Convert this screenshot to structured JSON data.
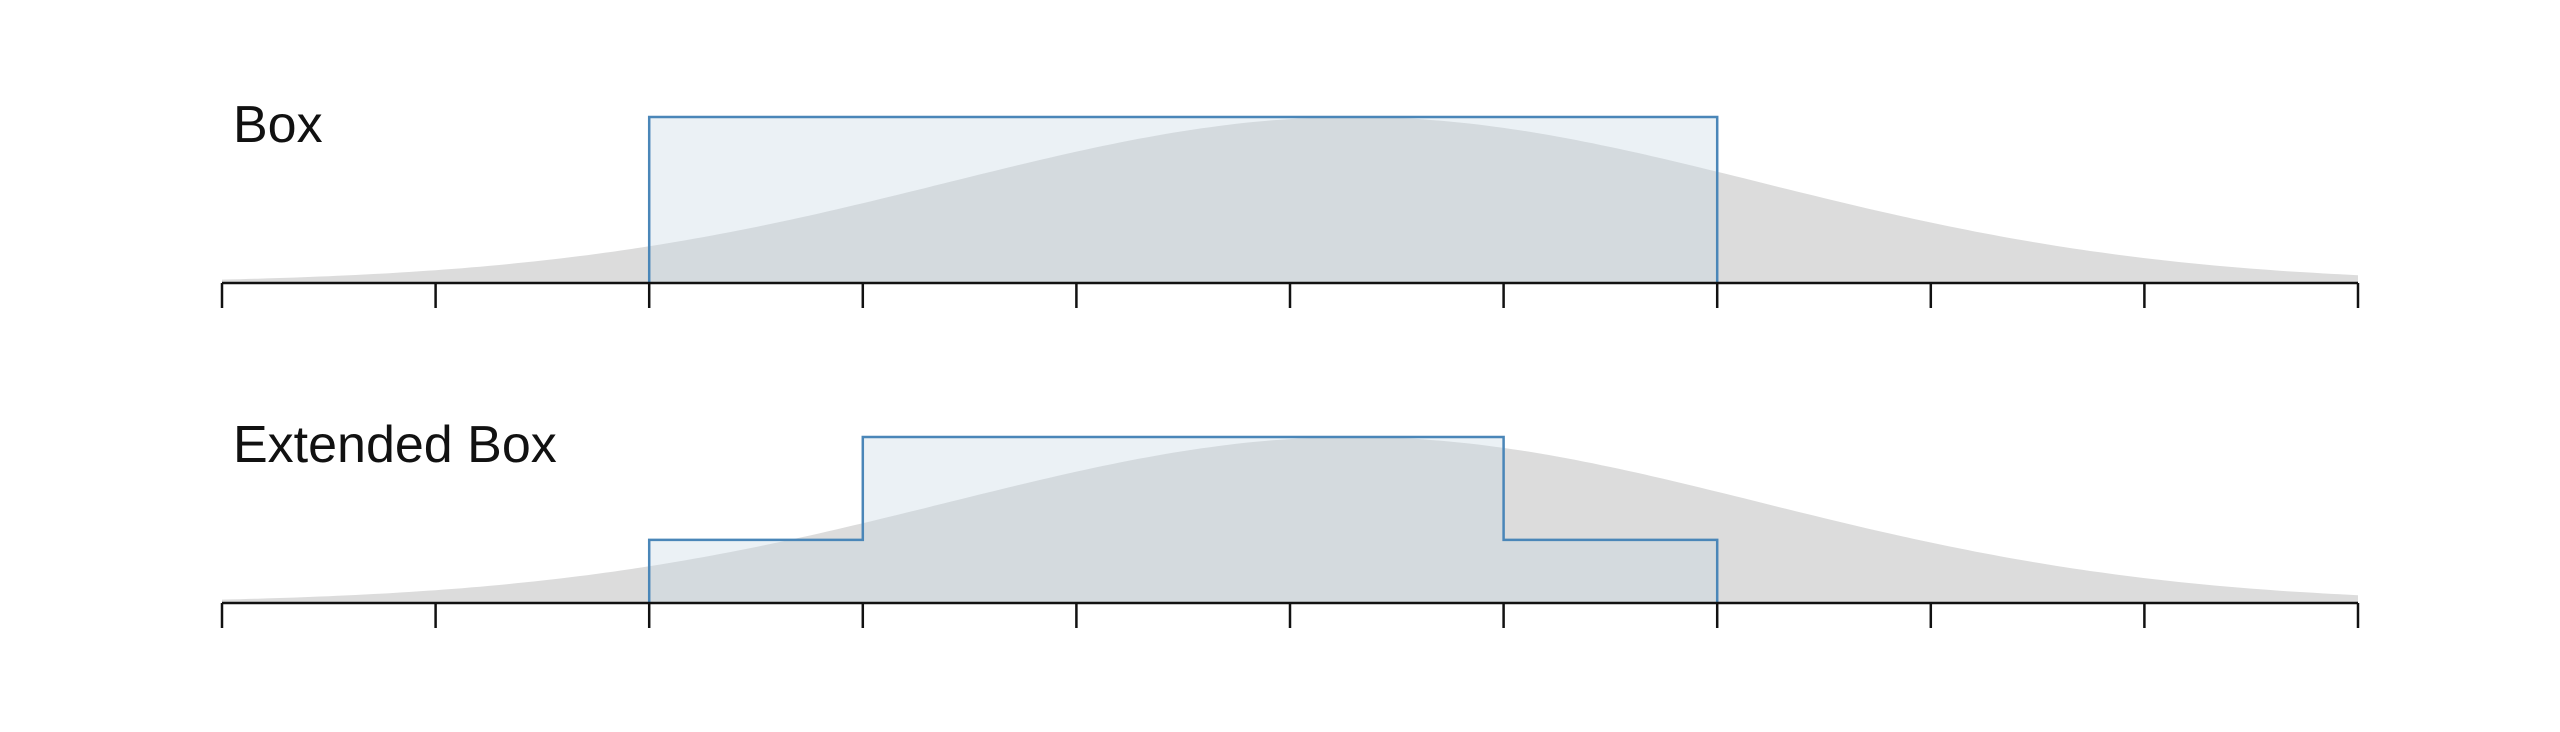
{
  "colors": {
    "curve_fill": "#dcdcdc",
    "box_fill": "#c7d7e3",
    "box_stroke": "#4a86b8",
    "axis": "#111111",
    "background": "#ffffff"
  },
  "domain": {
    "x_min": -3,
    "x_max": 7,
    "tick_step": 1,
    "curve_mean": 2.3,
    "curve_sd": 1.9
  },
  "panels": [
    {
      "label": "Box",
      "steps": [
        {
          "x0": -1,
          "x1": 4,
          "height": 1.0
        }
      ]
    },
    {
      "label": "Extended Box",
      "steps": [
        {
          "x0": -1,
          "x1": 0,
          "height": 0.38
        },
        {
          "x0": 0,
          "x1": 3,
          "height": 1.0
        },
        {
          "x0": 3,
          "x1": 4,
          "height": 0.38
        }
      ]
    }
  ]
}
